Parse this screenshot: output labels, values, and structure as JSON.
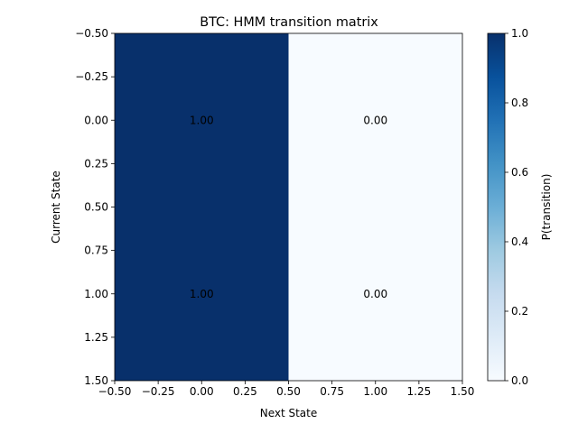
{
  "chart_data": {
    "type": "heatmap",
    "title": "BTC: HMM transition matrix",
    "xlabel": "Next State",
    "ylabel": "Current State",
    "x_ticks": [
      "−0.50",
      "−0.25",
      "0.00",
      "0.25",
      "0.50",
      "0.75",
      "1.00",
      "1.25",
      "1.50"
    ],
    "y_ticks": [
      "−0.50",
      "−0.25",
      "0.00",
      "0.25",
      "0.50",
      "0.75",
      "1.00",
      "1.25",
      "1.50"
    ],
    "xlim": [
      -0.5,
      1.5
    ],
    "ylim": [
      1.5,
      -0.5
    ],
    "matrix": [
      [
        1.0,
        0.0
      ],
      [
        1.0,
        0.0
      ]
    ],
    "cell_labels": [
      [
        "1.00",
        "0.00"
      ],
      [
        "1.00",
        "0.00"
      ]
    ],
    "colormap": {
      "low": "#f7fbff",
      "high": "#08306b"
    },
    "colorbar": {
      "label": "P(transition)",
      "range": [
        0.0,
        1.0
      ],
      "ticks": [
        "0.0",
        "0.2",
        "0.4",
        "0.6",
        "0.8",
        "1.0"
      ]
    }
  }
}
